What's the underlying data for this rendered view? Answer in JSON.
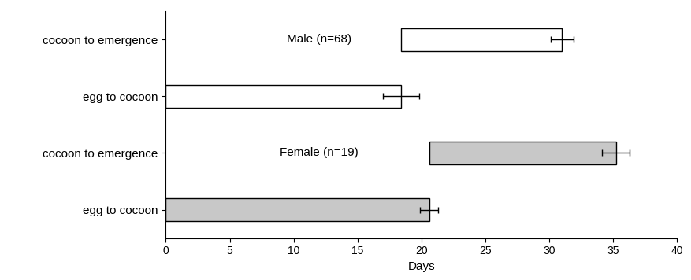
{
  "chart_data": {
    "type": "bar",
    "orientation": "horizontal",
    "categories": [
      "cocoon to emergence",
      "egg to cocoon",
      "cocoon to emergence",
      "egg to cocoon"
    ],
    "bar_start": [
      18.4,
      0,
      20.6,
      0
    ],
    "values": [
      31.0,
      18.4,
      35.2,
      20.6
    ],
    "errors": [
      0.9,
      1.4,
      1.1,
      0.7
    ],
    "colors": [
      "#ffffff",
      "#ffffff",
      "#c8c8c8",
      "#c8c8c8"
    ],
    "annotations": [
      "Male (n=68)",
      "Female (n=19)"
    ],
    "x_label": "Days",
    "xlim": [
      0,
      40
    ],
    "xticks": [
      0,
      5,
      10,
      15,
      20,
      25,
      30,
      35,
      40
    ],
    "grid": false
  }
}
